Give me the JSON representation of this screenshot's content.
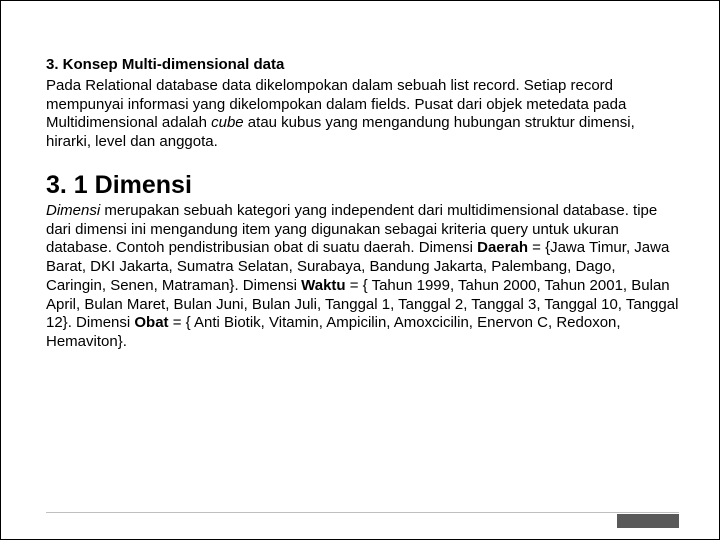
{
  "section": {
    "heading": "3. Konsep Multi-dimensional data",
    "body_pre": "Pada Relational database data dikelompokan dalam sebuah list record. Setiap record mempunyai informasi yang dikelompokan dalam fields. Pusat dari objek metedata pada Multidimensional adalah ",
    "body_em": "cube",
    "body_post": " atau kubus yang mengandung hubungan struktur dimensi, hirarki, level dan anggota."
  },
  "subsection": {
    "heading": "3. 1 Dimensi",
    "p1_em": "Dimensi",
    "p1_a": " merupakan sebuah kategori yang independent dari multidimensional database. tipe dari dimensi ini mengandung item yang digunakan sebagai kriteria query untuk ukuran database. Contoh pendistribusian obat di suatu daerah. Dimensi ",
    "p1_b1": "Daerah",
    "p1_b": " = {Jawa Timur, Jawa Barat, DKI Jakarta, Sumatra Selatan, Surabaya, Bandung Jakarta, Palembang, Dago, Caringin, Senen, Matraman}. Dimensi ",
    "p1_b2": "Waktu",
    "p1_c": " = { Tahun 1999, Tahun 2000, Tahun 2001, Bulan April, Bulan Maret, Bulan Juni, Bulan Juli, Tanggal 1, Tanggal 2, Tanggal 3, Tanggal 10, Tanggal 12}. Dimensi ",
    "p1_b3": "Obat",
    "p1_d": " = { Anti Biotik, Vitamin, Ampicilin, Amoxcicilin, Enervon C, Redoxon, Hemaviton}."
  }
}
